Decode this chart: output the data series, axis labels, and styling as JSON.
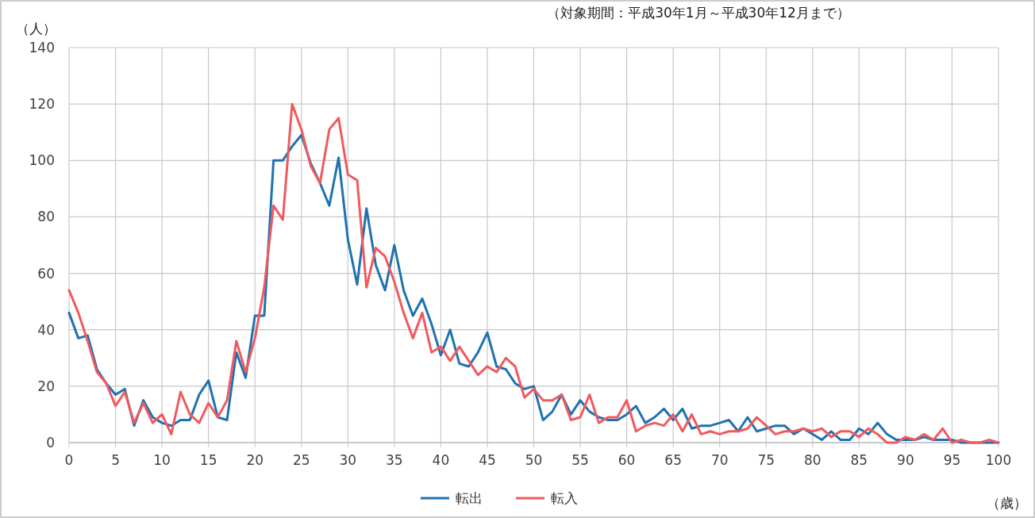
{
  "chart_data": {
    "type": "line",
    "subtitle": "（対象期間：平成30年1月～平成30年12月まで）",
    "ylabel": "（人）",
    "xlabel": "（歳）",
    "x": [
      0,
      1,
      2,
      3,
      4,
      5,
      6,
      7,
      8,
      9,
      10,
      11,
      12,
      13,
      14,
      15,
      16,
      17,
      18,
      19,
      20,
      21,
      22,
      23,
      24,
      25,
      26,
      27,
      28,
      29,
      30,
      31,
      32,
      33,
      34,
      35,
      36,
      37,
      38,
      39,
      40,
      41,
      42,
      43,
      44,
      45,
      46,
      47,
      48,
      49,
      50,
      51,
      52,
      53,
      54,
      55,
      56,
      57,
      58,
      59,
      60,
      61,
      62,
      63,
      64,
      65,
      66,
      67,
      68,
      69,
      70,
      71,
      72,
      73,
      74,
      75,
      76,
      77,
      78,
      79,
      80,
      81,
      82,
      83,
      84,
      85,
      86,
      87,
      88,
      89,
      90,
      91,
      92,
      93,
      94,
      95,
      96,
      97,
      98,
      99,
      100
    ],
    "xlim": [
      0,
      100
    ],
    "xticks": [
      0,
      5,
      10,
      15,
      20,
      25,
      30,
      35,
      40,
      45,
      50,
      55,
      60,
      65,
      70,
      75,
      80,
      85,
      90,
      95,
      100
    ],
    "ylim": [
      0,
      140
    ],
    "yticks": [
      0,
      20,
      40,
      60,
      80,
      100,
      120,
      140
    ],
    "grid": true,
    "legend": "bottom",
    "series": [
      {
        "name": "転出",
        "color": "#1f72b0",
        "values": [
          46,
          37,
          38,
          26,
          21,
          17,
          19,
          6,
          15,
          9,
          7,
          6,
          8,
          8,
          17,
          22,
          9,
          8,
          32,
          23,
          45,
          45,
          100,
          100,
          105,
          109,
          99,
          92,
          84,
          101,
          72,
          56,
          83,
          63,
          54,
          70,
          54,
          45,
          51,
          42,
          31,
          40,
          28,
          27,
          32,
          39,
          27,
          26,
          21,
          19,
          20,
          8,
          11,
          17,
          10,
          15,
          11,
          9,
          8,
          8,
          10,
          13,
          7,
          9,
          12,
          8,
          12,
          5,
          6,
          6,
          7,
          8,
          4,
          9,
          4,
          5,
          6,
          6,
          3,
          5,
          3,
          1,
          4,
          1,
          1,
          5,
          3,
          7,
          3,
          1,
          1,
          1,
          2,
          1,
          1,
          1,
          0,
          0,
          0,
          0,
          0
        ]
      },
      {
        "name": "転入",
        "color": "#ef5a5f",
        "values": [
          54,
          46,
          36,
          25,
          21,
          13,
          18,
          7,
          14,
          7,
          10,
          3,
          18,
          10,
          7,
          14,
          9,
          15,
          36,
          25,
          37,
          55,
          84,
          79,
          120,
          111,
          98,
          92,
          111,
          115,
          95,
          93,
          55,
          69,
          66,
          57,
          46,
          37,
          46,
          32,
          34,
          29,
          34,
          29,
          24,
          27,
          25,
          30,
          27,
          16,
          19,
          15,
          15,
          17,
          8,
          9,
          17,
          7,
          9,
          9,
          15,
          4,
          6,
          7,
          6,
          10,
          4,
          10,
          3,
          4,
          3,
          4,
          4,
          5,
          9,
          6,
          3,
          4,
          4,
          5,
          4,
          5,
          2,
          4,
          4,
          2,
          5,
          3,
          0,
          0,
          2,
          1,
          3,
          1,
          5,
          0,
          1,
          0,
          0,
          1,
          0
        ]
      }
    ]
  }
}
